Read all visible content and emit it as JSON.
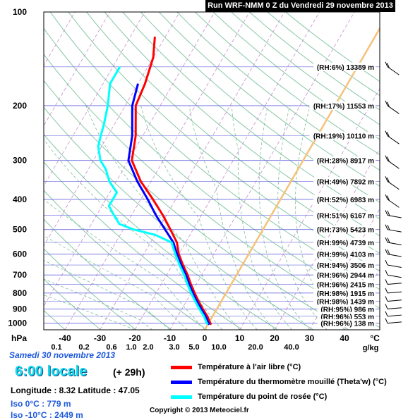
{
  "header": {
    "title": "Run WRF-NMM 0 Z du Vendredi 29 novembre 2013"
  },
  "info": {
    "date": "Samedi 30  novembre 2013",
    "hour": "6:00 locale",
    "offset": "(+ 29h)",
    "coords": "Longitude : 8.32   Latitude : 47.05",
    "iso0": "Iso 0°C : 779 m",
    "iso10": "Iso -10°C : 2449  m",
    "copyright": "Copyright © 2013 Meteociel.fr"
  },
  "legend": [
    {
      "label": "Température à l'air libre (°C)",
      "color": "#ff0000"
    },
    {
      "label": "Température du thermomètre mouillé (Theta'w) (°C)",
      "color": "#0000ff"
    },
    {
      "label": "Température du point de rosée (°C)",
      "color": "#00ffff"
    }
  ],
  "chart_data": {
    "type": "line",
    "title": "Run WRF-NMM 0 Z du Vendredi 29 novembre 2013",
    "y_axis": {
      "label": "hPa",
      "scale": "log",
      "range": [
        1050,
        100
      ],
      "ticks": [
        100,
        200,
        300,
        400,
        500,
        600,
        700,
        800,
        900,
        1000
      ]
    },
    "x_axis": {
      "label": "°C",
      "skew": true,
      "range": [
        -50,
        50
      ],
      "ticks": [
        -40,
        -30,
        -20,
        -10,
        0,
        10,
        20,
        30,
        40
      ]
    },
    "mixing_ratio": {
      "label": "g/kg",
      "ticks": [
        "0.1",
        "0.2",
        "0.6",
        "1.0",
        "2.0",
        "3.0",
        "5.0",
        "10.0",
        "20.0",
        "40.0"
      ]
    },
    "levels": [
      {
        "rh": "(RH:6%)",
        "height": "13389 m",
        "p": 150
      },
      {
        "rh": "(RH:17%)",
        "height": "11553 m",
        "p": 200
      },
      {
        "rh": "(RH:19%)",
        "height": "10110 m",
        "p": 250
      },
      {
        "rh": "(RH:28%)",
        "height": "8917 m",
        "p": 300
      },
      {
        "rh": "(RH:49%)",
        "height": "7892 m",
        "p": 350
      },
      {
        "rh": "(RH:52%)",
        "height": "6983 m",
        "p": 400
      },
      {
        "rh": "(RH:51%)",
        "height": "6167 m",
        "p": 450
      },
      {
        "rh": "(RH:73%)",
        "height": "5423 m",
        "p": 500
      },
      {
        "rh": "(RH:99%)",
        "height": "4739 m",
        "p": 550
      },
      {
        "rh": "(RH:99%)",
        "height": "4103 m",
        "p": 600
      },
      {
        "rh": "(RH:94%)",
        "height": "3506 m",
        "p": 650
      },
      {
        "rh": "(RH:96%)",
        "height": "2944 m",
        "p": 700
      },
      {
        "rh": "(RH:96%)",
        "height": "2415 m",
        "p": 750
      },
      {
        "rh": "(RH:98%)",
        "height": "1915 m",
        "p": 800
      },
      {
        "rh": "(RH:98%)",
        "height": "1439 m",
        "p": 850
      },
      {
        "rh": "(RH:95%)",
        "height": "986 m",
        "p": 900
      },
      {
        "rh": "(RH:96%)",
        "height": "553 m",
        "p": 950
      },
      {
        "rh": "(RH:96%)",
        "height": "138 m",
        "p": 1000
      }
    ],
    "series": [
      {
        "name": "Température à l'air libre (°C)",
        "color": "#ff0000",
        "points": [
          [
            1010,
            1
          ],
          [
            1000,
            0.5
          ],
          [
            950,
            -1.5
          ],
          [
            900,
            -4
          ],
          [
            850,
            -6.5
          ],
          [
            800,
            -9
          ],
          [
            750,
            -11.5
          ],
          [
            700,
            -14
          ],
          [
            650,
            -17
          ],
          [
            600,
            -20
          ],
          [
            550,
            -22.5
          ],
          [
            500,
            -26.5
          ],
          [
            450,
            -31
          ],
          [
            400,
            -36.5
          ],
          [
            350,
            -43
          ],
          [
            300,
            -49
          ],
          [
            250,
            -52
          ],
          [
            200,
            -57
          ],
          [
            170,
            -58
          ],
          [
            140,
            -60
          ],
          [
            120,
            -63
          ]
        ]
      },
      {
        "name": "Température du thermomètre mouillé (Theta'w) (°C)",
        "color": "#0000ff",
        "points": [
          [
            1010,
            0.5
          ],
          [
            1000,
            0
          ],
          [
            950,
            -2
          ],
          [
            900,
            -4.5
          ],
          [
            850,
            -7
          ],
          [
            800,
            -9.5
          ],
          [
            750,
            -12
          ],
          [
            700,
            -14.5
          ],
          [
            650,
            -17.5
          ],
          [
            600,
            -20.5
          ],
          [
            550,
            -23.5
          ],
          [
            500,
            -28
          ],
          [
            450,
            -33
          ],
          [
            400,
            -38
          ],
          [
            350,
            -44
          ],
          [
            300,
            -50
          ],
          [
            250,
            -53
          ],
          [
            200,
            -58
          ],
          [
            170,
            -60
          ]
        ]
      },
      {
        "name": "Température du point de rosée (°C)",
        "color": "#00ffff",
        "points": [
          [
            1010,
            0
          ],
          [
            1000,
            -0.5
          ],
          [
            950,
            -2.5
          ],
          [
            900,
            -5
          ],
          [
            850,
            -7.5
          ],
          [
            800,
            -10
          ],
          [
            750,
            -12.5
          ],
          [
            700,
            -15
          ],
          [
            650,
            -18
          ],
          [
            600,
            -21
          ],
          [
            550,
            -24
          ],
          [
            520,
            -30
          ],
          [
            500,
            -37
          ],
          [
            480,
            -42
          ],
          [
            450,
            -45
          ],
          [
            420,
            -48
          ],
          [
            400,
            -48
          ],
          [
            380,
            -48
          ],
          [
            350,
            -52
          ],
          [
            320,
            -55
          ],
          [
            300,
            -58
          ],
          [
            270,
            -61
          ],
          [
            250,
            -62
          ],
          [
            230,
            -63
          ],
          [
            200,
            -65
          ],
          [
            170,
            -68
          ],
          [
            150,
            -68
          ]
        ]
      }
    ],
    "iso_line": {
      "color": "#f5c27a"
    },
    "wind_barbs": true
  }
}
